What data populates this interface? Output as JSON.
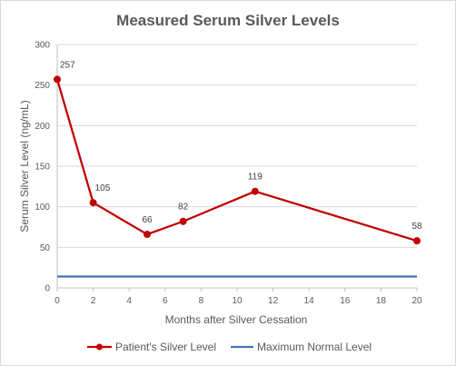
{
  "chart_data": {
    "type": "line",
    "title": "Measured Serum Silver Levels",
    "xlabel": "Months after Silver Cessation",
    "ylabel": "Serum Silver Level (ng/mL)",
    "xlim": [
      0,
      20
    ],
    "ylim": [
      0,
      300
    ],
    "x_ticks": [
      0,
      2,
      4,
      6,
      8,
      10,
      12,
      14,
      16,
      18,
      20
    ],
    "y_ticks": [
      0,
      50,
      100,
      150,
      200,
      250,
      300
    ],
    "grid": "horizontal",
    "legend_position": "bottom",
    "series": [
      {
        "name": "Patient's Silver Level",
        "color": "#c00000",
        "marker": "circle",
        "data_labels": true,
        "x": [
          0,
          2,
          5,
          7,
          11,
          20
        ],
        "y": [
          257,
          105,
          66,
          82,
          119,
          58
        ]
      },
      {
        "name": "Maximum Normal Level",
        "color": "#4472c4",
        "marker": "none",
        "data_labels": false,
        "x": [
          0,
          20
        ],
        "y": [
          14,
          14
        ]
      }
    ]
  }
}
